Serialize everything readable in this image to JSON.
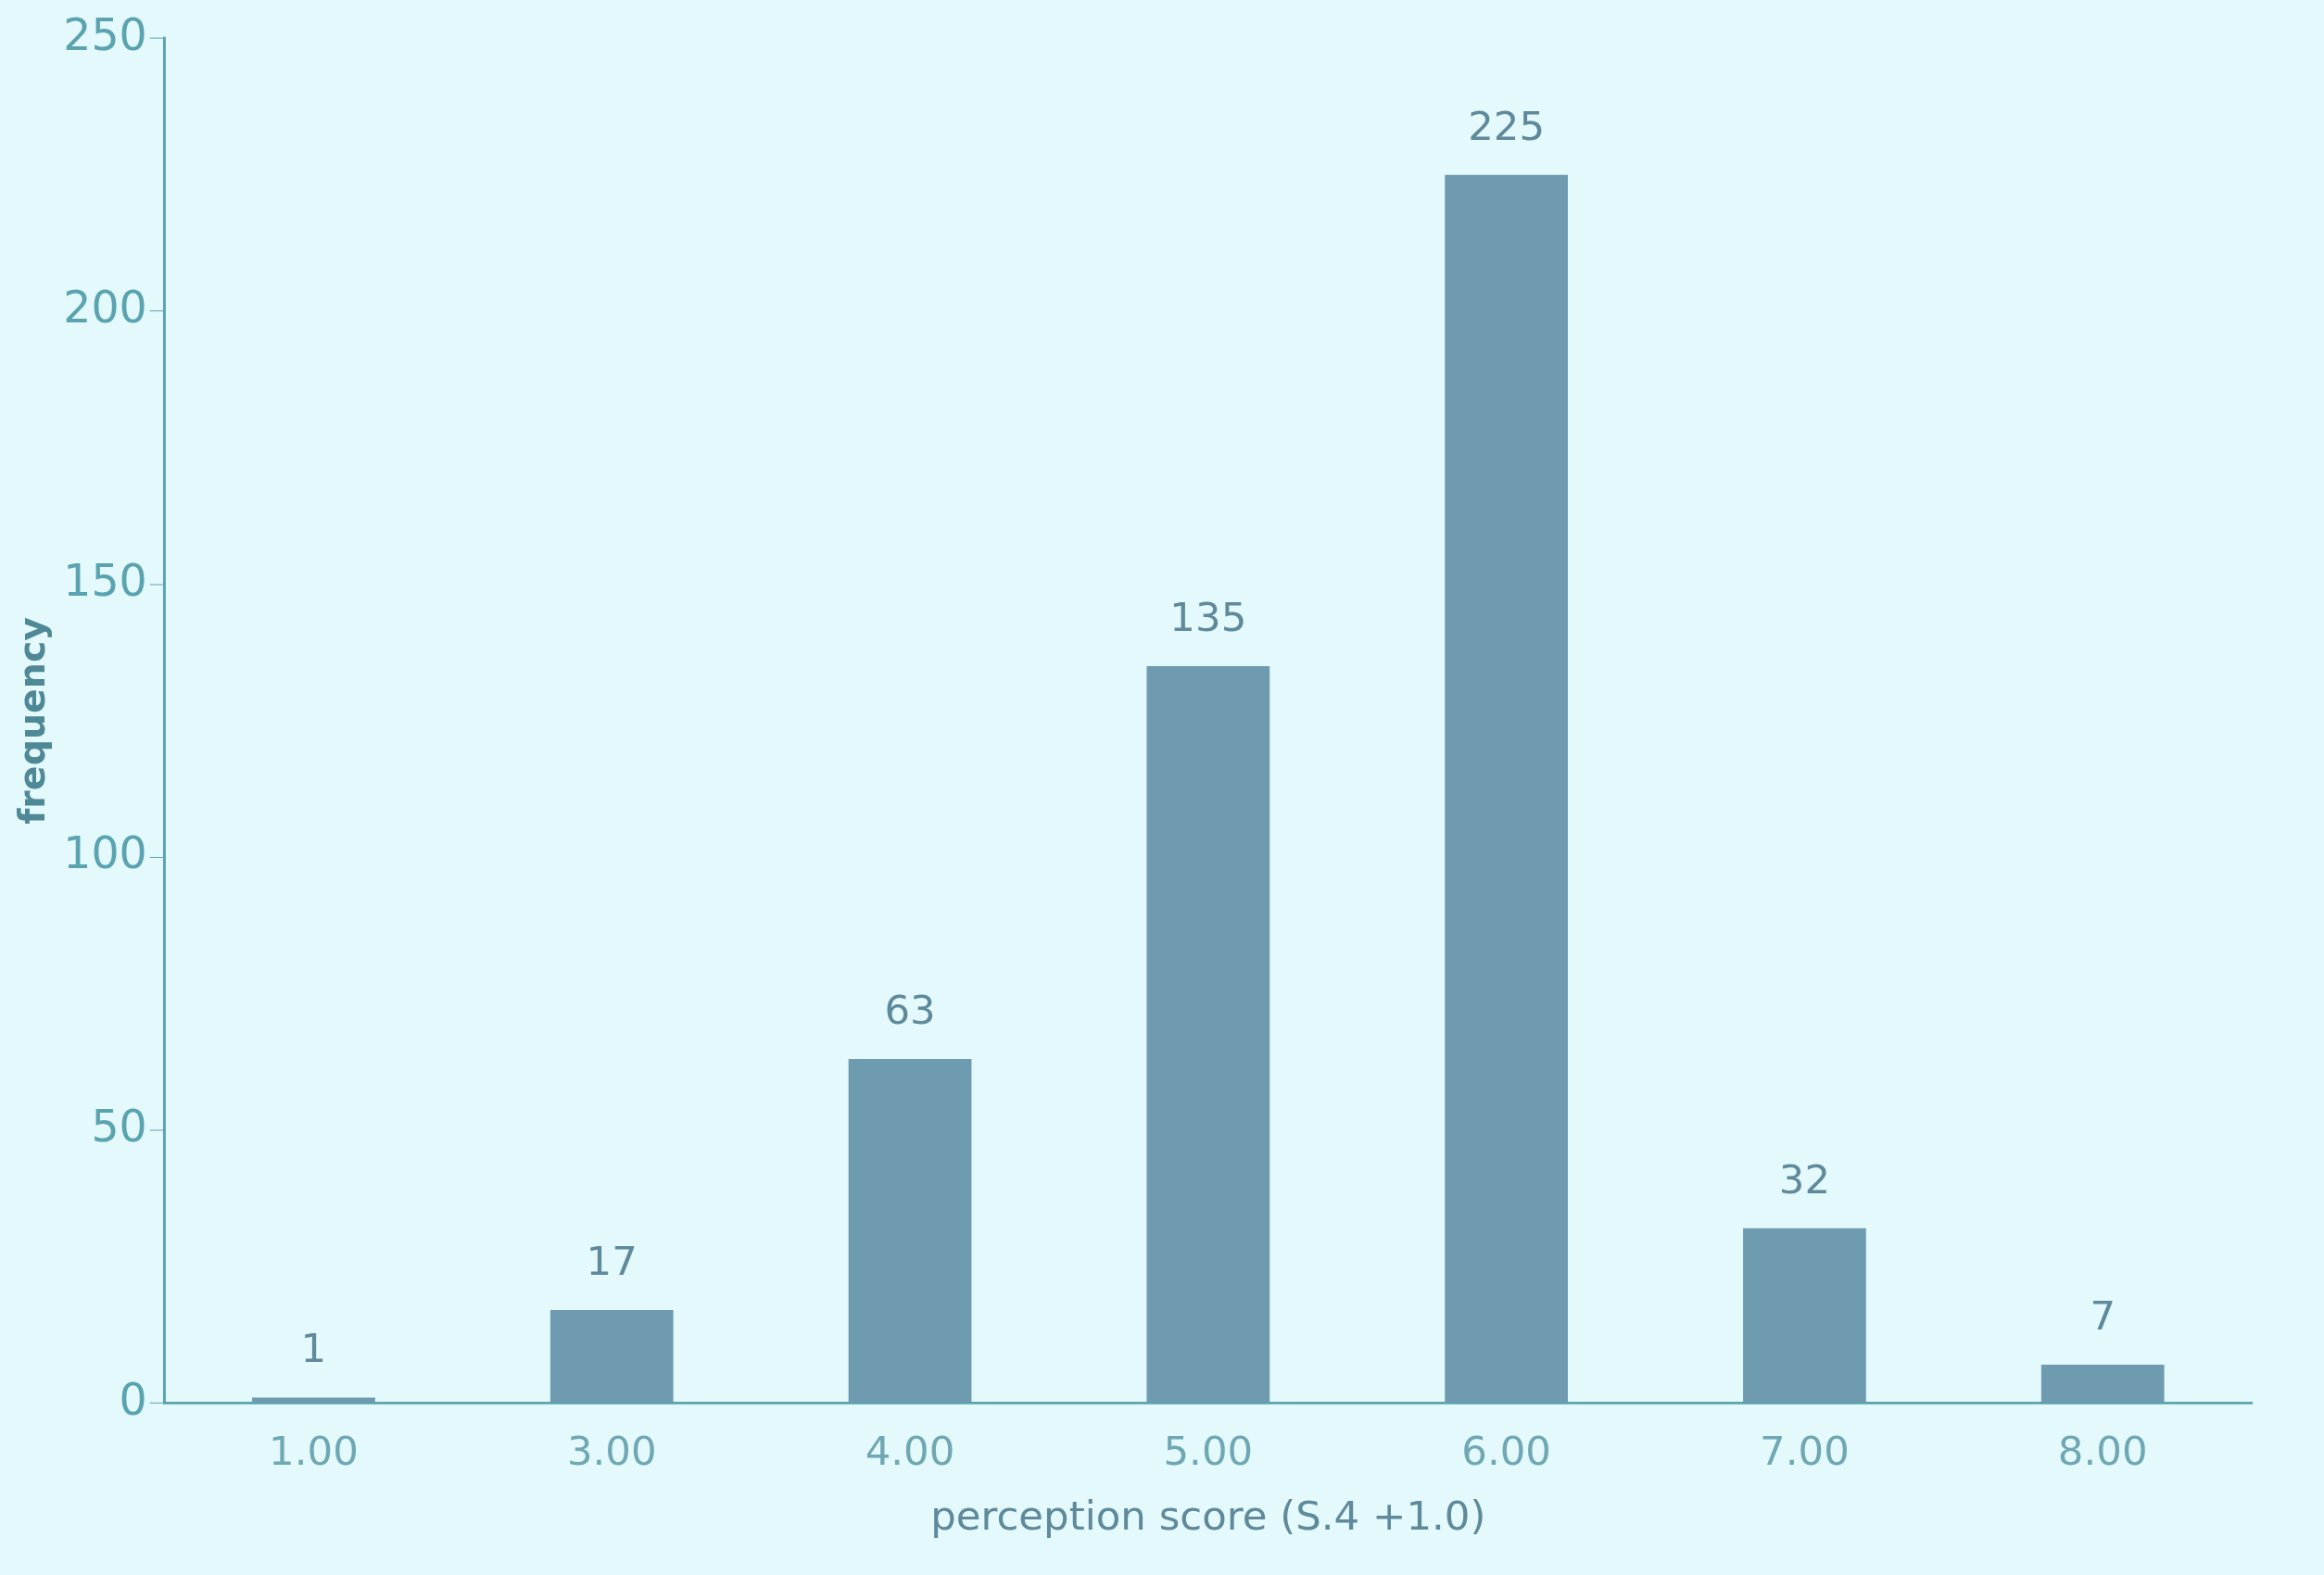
{
  "chart_data": {
    "type": "bar",
    "xlabel": "perception score (S.4 +1.0)",
    "ylabel": "frequency",
    "categories": [
      "1.00",
      "3.00",
      "4.00",
      "5.00",
      "6.00",
      "7.00",
      "8.00"
    ],
    "values": [
      1,
      17,
      63,
      135,
      225,
      32,
      7
    ],
    "color": "#6f9bb0",
    "ylim": [
      0,
      250
    ],
    "yticks": [
      0,
      50,
      100,
      150,
      200,
      250
    ],
    "grid": false,
    "data_labels": true,
    "legend": false
  }
}
